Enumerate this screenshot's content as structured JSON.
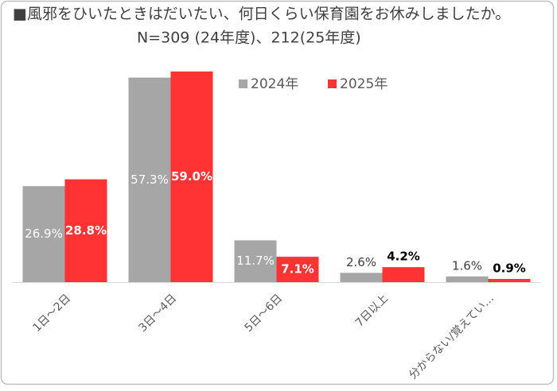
{
  "chart_data": {
    "type": "bar",
    "title": "■風邪をひいたときはだいたい、何日くらい保育園をお休みしましたか。",
    "subtitle": "N=309 (24年度)、212(25年度)",
    "categories": [
      "1日～2日",
      "3日～4日",
      "5日～6日",
      "7日以上",
      "分からない/覚えてい…"
    ],
    "series": [
      {
        "name": "2024年",
        "color": "#a6a6a6",
        "values": [
          26.9,
          57.3,
          11.7,
          2.6,
          1.6
        ],
        "value_labels": [
          "26.9%",
          "57.3%",
          "11.7%",
          "2.6%",
          "1.6%"
        ]
      },
      {
        "name": "2025年",
        "color": "#ff3333",
        "values": [
          28.8,
          59.0,
          7.1,
          4.2,
          0.9
        ],
        "value_labels": [
          "28.8%",
          "59.0%",
          "7.1%",
          "4.2%",
          "0.9%"
        ]
      }
    ]
  }
}
